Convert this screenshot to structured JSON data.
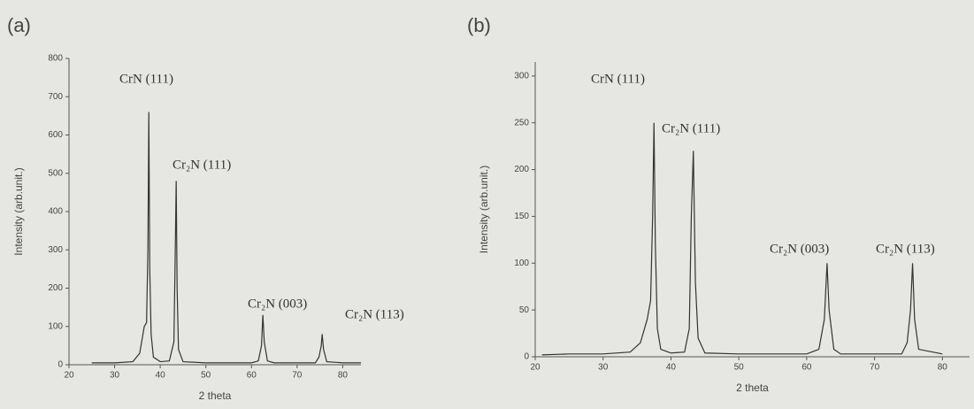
{
  "chart_data": [
    {
      "type": "line",
      "title": "(a)",
      "x_label": "2 theta",
      "y_label": "Intensity (arb.unit.)",
      "annotations": [
        "CrN (111)",
        "Cr₂N (111)",
        "Cr₂N (003)",
        "Cr₂N (113)"
      ],
      "x": [
        25,
        30,
        34,
        35.5,
        36.5,
        37,
        37.3,
        37.5,
        37.7,
        38,
        38.5,
        40,
        42,
        43,
        43.3,
        43.5,
        43.7,
        44,
        45,
        50,
        55,
        60,
        61.5,
        62.2,
        62.5,
        62.8,
        63.5,
        65,
        70,
        74,
        74.8,
        75.3,
        75.5,
        75.8,
        76.5,
        80,
        84
      ],
      "series": [
        {
          "color": "#333333",
          "values": [
            5,
            5,
            8,
            30,
            100,
            110,
            300,
            660,
            250,
            80,
            20,
            8,
            10,
            60,
            300,
            480,
            200,
            40,
            8,
            5,
            5,
            5,
            10,
            50,
            130,
            60,
            10,
            5,
            5,
            5,
            20,
            50,
            80,
            40,
            8,
            5,
            5
          ]
        }
      ],
      "xlim": [
        20,
        84
      ],
      "xticks": [
        20,
        30,
        40,
        50,
        60,
        70,
        80
      ],
      "ylim": [
        0,
        800
      ],
      "yticks": [
        0,
        100,
        200,
        300,
        400,
        500,
        600,
        700,
        800
      ]
    },
    {
      "type": "line",
      "title": "(b)",
      "x_label": "2 theta",
      "y_label": "Intensity (arb.unit.)",
      "annotations": [
        "CrN (111)",
        "Cr₂N (111)",
        "Cr₂N (003)",
        "Cr₂N (113)"
      ],
      "x": [
        21,
        25,
        30,
        34,
        35.5,
        36.5,
        37,
        37.3,
        37.5,
        37.7,
        38,
        38.5,
        40,
        42,
        42.7,
        43,
        43.3,
        43.6,
        44,
        45,
        50,
        55,
        60,
        61.8,
        62.6,
        63,
        63.3,
        64,
        65,
        70,
        74,
        74.8,
        75.3,
        75.6,
        75.9,
        76.5,
        80
      ],
      "series": [
        {
          "color": "#333333",
          "values": [
            2,
            3,
            3,
            5,
            15,
            40,
            60,
            150,
            250,
            120,
            30,
            8,
            4,
            5,
            30,
            150,
            220,
            80,
            20,
            4,
            3,
            3,
            3,
            8,
            40,
            100,
            50,
            8,
            3,
            3,
            3,
            15,
            50,
            100,
            40,
            8,
            3
          ]
        }
      ],
      "xlim": [
        20,
        84
      ],
      "xticks": [
        20,
        30,
        40,
        50,
        60,
        70,
        80
      ],
      "ylim": [
        0,
        315
      ],
      "yticks": [
        0,
        50,
        100,
        150,
        200,
        250,
        300
      ]
    }
  ]
}
